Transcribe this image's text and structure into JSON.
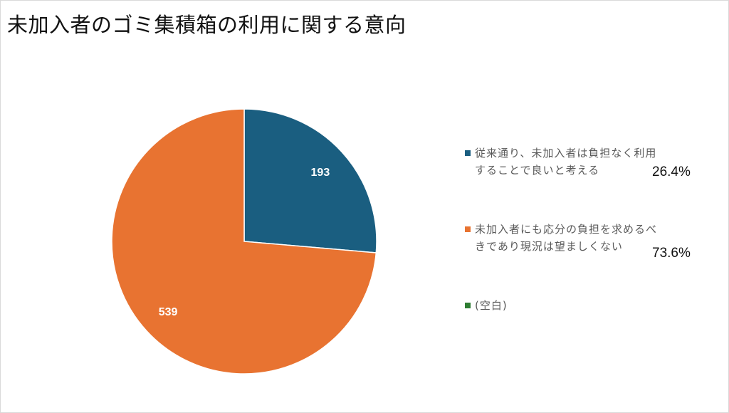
{
  "title": "未加入者のゴミ集積箱の利用に関する意向",
  "chart_data": {
    "type": "pie",
    "title": "未加入者のゴミ集積箱の利用に関する意向",
    "slices": [
      {
        "name": "従来通り、未加入者は負担なく利用することで良いと考える",
        "value": 193,
        "percent": "26.4%",
        "color": "#1a5e80"
      },
      {
        "name": "未加入者にも応分の負担を求めるべきであり現況は望ましくない",
        "value": 539,
        "percent": "73.6%",
        "color": "#e87331"
      },
      {
        "name": "(空白)",
        "value": 0,
        "percent": "",
        "color": "#2e7d32"
      }
    ],
    "legend_position": "right"
  },
  "legend": {
    "item1_line1": "従来通り、未加入者は負担なく利用",
    "item1_line2": "することで良いと考える",
    "item1_pct": "26.4%",
    "item2_line1": "未加入者にも応分の負担を求めるべ",
    "item2_line2": "きであり現況は望ましくない",
    "item2_pct": "73.6%",
    "item3_label": "(空白)"
  }
}
